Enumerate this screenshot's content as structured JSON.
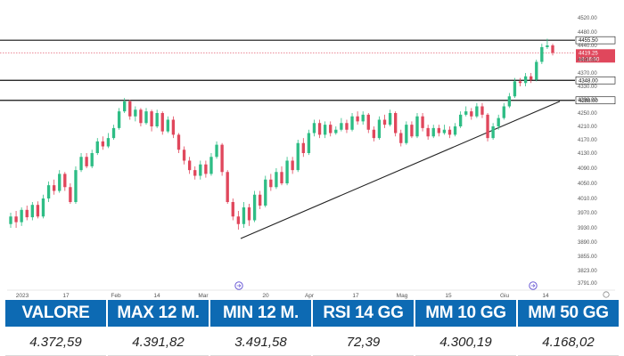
{
  "chart_data": {
    "type": "candlestick",
    "y_ticks": [
      "4520.00",
      "4480.00",
      "4440.00",
      "4400.00",
      "4370.00",
      "4330.00",
      "4290.00",
      "4250.00",
      "4210.00",
      "4170.00",
      "4130.00",
      "4090.00",
      "4050.00",
      "4010.00",
      "3970.00",
      "3930.00",
      "3890.00",
      "3855.00",
      "3823.00",
      "3791.00"
    ],
    "x_ticks": [
      "2023",
      "17",
      "Feb",
      "14",
      "Mar",
      "20",
      "Apr",
      "17",
      "Mag",
      "15",
      "Giu",
      "14"
    ],
    "ylim": [
      3791,
      4520
    ],
    "levels": [
      {
        "value": 4455.5,
        "label": "4455.50"
      },
      {
        "value": 4348.0,
        "label": "4348.00"
      },
      {
        "value": 4288.0,
        "label": "4288.00"
      }
    ],
    "current_price": {
      "label": "4419.25",
      "time": "16:16:00",
      "value": 4419.25
    },
    "trendline": {
      "start_value": 3900,
      "end_value": 4285
    },
    "colors": {
      "up": "#2ebd85",
      "down": "#e0475c",
      "level": "#111111",
      "price_tag": "#e0475c"
    },
    "candles": [
      [
        3940,
        3960,
        3970,
        3930
      ],
      [
        3960,
        3945,
        3975,
        3930
      ],
      [
        3945,
        3978,
        3985,
        3935
      ],
      [
        3978,
        3958,
        3990,
        3950
      ],
      [
        3958,
        3992,
        4000,
        3950
      ],
      [
        3992,
        3960,
        4002,
        3955
      ],
      [
        3960,
        4010,
        4020,
        3955
      ],
      [
        4010,
        4045,
        4055,
        4000
      ],
      [
        4045,
        4030,
        4060,
        4020
      ],
      [
        4030,
        4075,
        4085,
        4025
      ],
      [
        4075,
        4040,
        4080,
        4030
      ],
      [
        4040,
        4000,
        4050,
        3995
      ],
      [
        4000,
        4085,
        4095,
        3995
      ],
      [
        4085,
        4120,
        4130,
        4080
      ],
      [
        4120,
        4095,
        4130,
        4090
      ],
      [
        4095,
        4130,
        4140,
        4090
      ],
      [
        4130,
        4165,
        4175,
        4125
      ],
      [
        4165,
        4150,
        4180,
        4140
      ],
      [
        4150,
        4175,
        4190,
        4145
      ],
      [
        4175,
        4205,
        4215,
        4170
      ],
      [
        4205,
        4255,
        4265,
        4200
      ],
      [
        4255,
        4285,
        4295,
        4250
      ],
      [
        4285,
        4240,
        4290,
        4230
      ],
      [
        4240,
        4260,
        4270,
        4225
      ],
      [
        4260,
        4220,
        4265,
        4210
      ],
      [
        4220,
        4255,
        4265,
        4215
      ],
      [
        4255,
        4210,
        4260,
        4195
      ],
      [
        4210,
        4250,
        4260,
        4205
      ],
      [
        4250,
        4195,
        4255,
        4185
      ],
      [
        4195,
        4230,
        4240,
        4190
      ],
      [
        4230,
        4185,
        4240,
        4175
      ],
      [
        4185,
        4140,
        4190,
        4130
      ],
      [
        4140,
        4110,
        4150,
        4100
      ],
      [
        4110,
        4085,
        4120,
        4075
      ],
      [
        4085,
        4070,
        4095,
        4060
      ],
      [
        4070,
        4100,
        4110,
        4060
      ],
      [
        4100,
        4075,
        4110,
        4065
      ],
      [
        4075,
        4120,
        4130,
        4070
      ],
      [
        4120,
        4155,
        4165,
        4115
      ],
      [
        4155,
        4080,
        4160,
        4070
      ],
      [
        4080,
        4000,
        4085,
        3995
      ],
      [
        4000,
        3960,
        4010,
        3950
      ],
      [
        3960,
        3940,
        3975,
        3925
      ],
      [
        3940,
        3985,
        4000,
        3930
      ],
      [
        3985,
        3950,
        3995,
        3935
      ],
      [
        3950,
        4020,
        4030,
        3945
      ],
      [
        4020,
        3990,
        4030,
        3980
      ],
      [
        3990,
        4060,
        4070,
        3985
      ],
      [
        4060,
        4040,
        4075,
        4030
      ],
      [
        4040,
        4080,
        4090,
        4035
      ],
      [
        4080,
        4050,
        4095,
        4045
      ],
      [
        4050,
        4110,
        4120,
        4045
      ],
      [
        4110,
        4085,
        4120,
        4075
      ],
      [
        4085,
        4160,
        4170,
        4080
      ],
      [
        4160,
        4130,
        4175,
        4120
      ],
      [
        4130,
        4190,
        4200,
        4125
      ],
      [
        4190,
        4220,
        4230,
        4180
      ],
      [
        4220,
        4185,
        4230,
        4175
      ],
      [
        4185,
        4215,
        4225,
        4175
      ],
      [
        4215,
        4190,
        4225,
        4180
      ],
      [
        4190,
        4200,
        4210,
        4185
      ],
      [
        4200,
        4220,
        4235,
        4195
      ],
      [
        4220,
        4200,
        4230,
        4190
      ],
      [
        4200,
        4240,
        4250,
        4195
      ],
      [
        4240,
        4225,
        4255,
        4215
      ],
      [
        4225,
        4245,
        4255,
        4215
      ],
      [
        4245,
        4200,
        4250,
        4190
      ],
      [
        4200,
        4175,
        4210,
        4165
      ],
      [
        4175,
        4230,
        4240,
        4170
      ],
      [
        4230,
        4215,
        4245,
        4205
      ],
      [
        4215,
        4250,
        4260,
        4210
      ],
      [
        4250,
        4190,
        4255,
        4180
      ],
      [
        4190,
        4160,
        4200,
        4150
      ],
      [
        4160,
        4215,
        4225,
        4155
      ],
      [
        4215,
        4180,
        4225,
        4175
      ],
      [
        4180,
        4240,
        4250,
        4175
      ],
      [
        4240,
        4205,
        4250,
        4195
      ],
      [
        4205,
        4180,
        4215,
        4170
      ],
      [
        4180,
        4205,
        4215,
        4175
      ],
      [
        4205,
        4190,
        4215,
        4180
      ],
      [
        4190,
        4200,
        4215,
        4185
      ],
      [
        4200,
        4185,
        4210,
        4175
      ],
      [
        4185,
        4210,
        4220,
        4180
      ],
      [
        4210,
        4245,
        4255,
        4205
      ],
      [
        4245,
        4255,
        4270,
        4240
      ],
      [
        4255,
        4240,
        4265,
        4230
      ],
      [
        4240,
        4270,
        4280,
        4235
      ],
      [
        4270,
        4245,
        4280,
        4235
      ],
      [
        4245,
        4175,
        4250,
        4165
      ],
      [
        4175,
        4210,
        4220,
        4170
      ],
      [
        4210,
        4235,
        4245,
        4200
      ],
      [
        4235,
        4270,
        4280,
        4230
      ],
      [
        4270,
        4300,
        4310,
        4265
      ],
      [
        4300,
        4345,
        4355,
        4295
      ],
      [
        4345,
        4340,
        4355,
        4330
      ],
      [
        4340,
        4360,
        4370,
        4330
      ],
      [
        4360,
        4350,
        4370,
        4340
      ],
      [
        4350,
        4395,
        4400,
        4345
      ],
      [
        4395,
        4435,
        4445,
        4390
      ],
      [
        4435,
        4440,
        4460,
        4430
      ],
      [
        4440,
        4419,
        4445,
        4412
      ]
    ]
  },
  "stats": [
    {
      "label": "VALORE",
      "value": "4.372,59"
    },
    {
      "label": "MAX 12 M.",
      "value": "4.391,82"
    },
    {
      "label": "MIN 12 M.",
      "value": "3.491,58"
    },
    {
      "label": "RSI 14 GG",
      "value": "72,39"
    },
    {
      "label": "MM 10 GG",
      "value": "4.300,19"
    },
    {
      "label": "MM 50 GG",
      "value": "4.168,02"
    }
  ]
}
